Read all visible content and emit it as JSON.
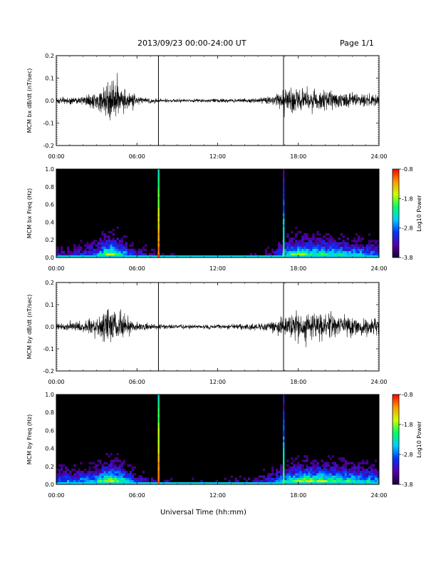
{
  "header": {
    "title": "2013/09/23  00:00-24:00 UT",
    "page": "Page 1/1"
  },
  "colors": {
    "trace": "#000000",
    "event_marker": "#000000",
    "spectrogram_background": "#000000",
    "colormap": [
      "#1a0033",
      "#5500aa",
      "#0033ff",
      "#00ccff",
      "#00ff66",
      "#ccff00",
      "#ff9900",
      "#ff0000"
    ]
  },
  "chart_data": [
    {
      "type": "line",
      "ylabel": "MCM bx dB/dt (nT/sec)",
      "ylim": [
        -0.2,
        0.2
      ],
      "yticks": [
        "0.2",
        "0.1",
        "0.0",
        "-0.1",
        "-0.2"
      ],
      "xlim_hours": [
        0,
        24
      ],
      "xticks": [
        "00:00",
        "06:00",
        "12:00",
        "18:00",
        "24:00"
      ],
      "event_markers_hours": [
        7.6,
        16.9
      ],
      "series": [
        {
          "x_hours": [
            0,
            1,
            2,
            3,
            3.6,
            4,
            4.5,
            5,
            5.5,
            6,
            7,
            8,
            9,
            10,
            11,
            12,
            13,
            14,
            15,
            16,
            16.9,
            17.5,
            18,
            19,
            20,
            21,
            22,
            23,
            24
          ],
          "amplitude": [
            0.012,
            0.014,
            0.018,
            0.035,
            0.065,
            0.09,
            0.085,
            0.06,
            0.035,
            0.02,
            0.012,
            0.008,
            0.007,
            0.007,
            0.007,
            0.008,
            0.008,
            0.009,
            0.011,
            0.018,
            0.045,
            0.055,
            0.05,
            0.045,
            0.04,
            0.035,
            0.03,
            0.028,
            0.025
          ]
        }
      ]
    },
    {
      "type": "heatmap",
      "ylabel": "MCM bx Freq (Hz)",
      "ylim": [
        0,
        1.0
      ],
      "yticks": [
        "1.0",
        "0.8",
        "0.6",
        "0.4",
        "0.2",
        "0.0"
      ],
      "xlim_hours": [
        0,
        24
      ],
      "xticks": [
        "00:00",
        "06:00",
        "12:00",
        "18:00",
        "24:00"
      ],
      "colorbar": {
        "label": "Log10 Power",
        "ticks": [
          "-0.8",
          "-1.8",
          "-2.8",
          "-3.8"
        ],
        "range": [
          -3.8,
          -0.8
        ]
      },
      "activity_hours": [
        0,
        1,
        2,
        3,
        3.6,
        4,
        4.5,
        5,
        5.5,
        6,
        7,
        8,
        9,
        10,
        11,
        12,
        13,
        14,
        15,
        16,
        16.9,
        17.5,
        18,
        19,
        20,
        21,
        22,
        23,
        24
      ],
      "activity_level": [
        0.35,
        0.35,
        0.4,
        0.5,
        0.75,
        0.8,
        0.78,
        0.6,
        0.45,
        0.35,
        0.3,
        0.2,
        0.15,
        0.15,
        0.15,
        0.15,
        0.15,
        0.18,
        0.2,
        0.3,
        0.55,
        0.7,
        0.75,
        0.72,
        0.7,
        0.65,
        0.6,
        0.55,
        0.5
      ],
      "event_lines_hours": [
        7.6,
        16.9
      ]
    },
    {
      "type": "line",
      "ylabel": "MCM by dB/dt (nT/sec)",
      "ylim": [
        -0.2,
        0.2
      ],
      "yticks": [
        "0.2",
        "0.1",
        "0.0",
        "-0.1",
        "-0.2"
      ],
      "xlim_hours": [
        0,
        24
      ],
      "xticks": [
        "00:00",
        "06:00",
        "12:00",
        "18:00",
        "24:00"
      ],
      "event_markers_hours": [
        7.6,
        16.9
      ],
      "series": [
        {
          "x_hours": [
            0,
            1,
            2,
            3,
            3.6,
            4,
            4.5,
            5,
            5.5,
            6,
            7,
            8,
            9,
            10,
            11,
            12,
            13,
            14,
            15,
            16,
            16.9,
            17.5,
            18,
            19,
            20,
            21,
            22,
            23,
            24
          ],
          "amplitude": [
            0.015,
            0.018,
            0.025,
            0.04,
            0.075,
            0.085,
            0.08,
            0.06,
            0.035,
            0.02,
            0.012,
            0.01,
            0.009,
            0.009,
            0.009,
            0.01,
            0.01,
            0.012,
            0.014,
            0.02,
            0.05,
            0.065,
            0.07,
            0.06,
            0.055,
            0.05,
            0.045,
            0.04,
            0.035
          ]
        }
      ]
    },
    {
      "type": "heatmap",
      "ylabel": "MCM by Freq (Hz)",
      "ylim": [
        0,
        1.0
      ],
      "yticks": [
        "1.0",
        "0.8",
        "0.6",
        "0.4",
        "0.2",
        "0.0"
      ],
      "xlim_hours": [
        0,
        24
      ],
      "xticks": [
        "00:00",
        "06:00",
        "12:00",
        "18:00",
        "24:00"
      ],
      "xlabel": "Universal Time (hh:mm)",
      "colorbar": {
        "label": "Log10 Power",
        "ticks": [
          "-0.8",
          "-1.8",
          "-2.8",
          "-3.8"
        ],
        "range": [
          -3.8,
          -0.8
        ]
      },
      "activity_hours": [
        0,
        1,
        2,
        3,
        3.6,
        4,
        4.5,
        5,
        5.5,
        6,
        7,
        8,
        9,
        10,
        11,
        12,
        13,
        14,
        15,
        16,
        16.9,
        17.5,
        18,
        19,
        20,
        21,
        22,
        23,
        24
      ],
      "activity_level": [
        0.5,
        0.5,
        0.55,
        0.6,
        0.8,
        0.85,
        0.8,
        0.65,
        0.5,
        0.4,
        0.3,
        0.25,
        0.2,
        0.2,
        0.2,
        0.2,
        0.22,
        0.25,
        0.3,
        0.4,
        0.6,
        0.72,
        0.78,
        0.8,
        0.75,
        0.72,
        0.68,
        0.62,
        0.55
      ],
      "event_lines_hours": [
        7.6,
        16.9
      ]
    }
  ]
}
